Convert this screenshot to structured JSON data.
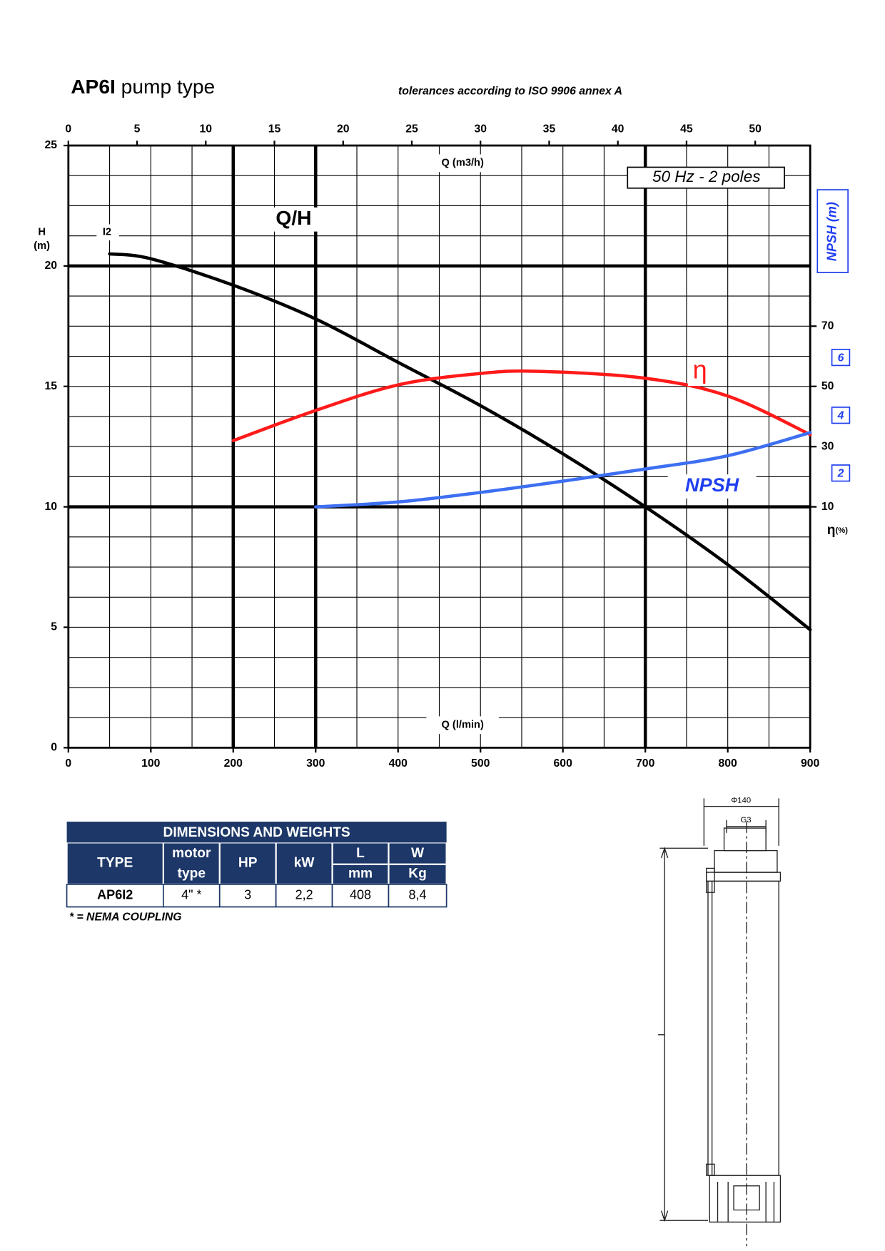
{
  "header": {
    "title_bold": "AP6I",
    "title_rest": "pump type",
    "note": "tolerances according to ISO 9906 annex A"
  },
  "chart_data": {
    "type": "line",
    "xlabel": "Q (l/min)",
    "x2label": "Q (m3/h)",
    "ylabel": "H",
    "yunit": "(m)",
    "y2label": "η",
    "y2unit": "(%)",
    "y3label": "NPSH (m)",
    "badge": "50 Hz - 2 poles",
    "annotations": [
      "I2"
    ],
    "xlim": [
      0,
      900
    ],
    "xticks": [
      0,
      100,
      200,
      300,
      400,
      500,
      600,
      700,
      800,
      900
    ],
    "x2lim": [
      0,
      54
    ],
    "x2ticks": [
      0,
      5,
      10,
      15,
      20,
      25,
      30,
      35,
      40,
      45,
      50
    ],
    "ylim": [
      0,
      25
    ],
    "yticks": [
      0,
      5,
      10,
      15,
      20,
      25
    ],
    "y2lim": [
      -70,
      130
    ],
    "y2ticks": [
      10,
      30,
      50,
      70
    ],
    "y3lim": [
      -7.5,
      13.33
    ],
    "y3ticks": [
      2,
      4,
      6
    ],
    "xgrid": [
      0,
      50,
      100,
      150,
      200,
      250,
      300,
      350,
      400,
      450,
      500,
      550,
      600,
      650,
      700,
      750,
      800,
      850,
      900
    ],
    "ygrid": [
      0,
      1.25,
      2.5,
      3.75,
      5,
      6.25,
      7.5,
      8.75,
      10,
      11.25,
      12.5,
      13.75,
      15,
      16.25,
      17.5,
      18.75,
      20,
      21.25,
      22.5,
      23.75,
      25
    ],
    "thick_x": [
      200,
      300,
      700
    ],
    "thick_y": [
      10,
      20
    ],
    "series": [
      {
        "name": "Q/H",
        "color": "#000000",
        "axis": "y",
        "x": [
          50,
          100,
          200,
          300,
          400,
          500,
          600,
          700,
          800,
          900
        ],
        "values": [
          20.5,
          20.3,
          19.2,
          17.8,
          16.0,
          14.2,
          12.2,
          10.0,
          7.6,
          4.9
        ]
      },
      {
        "name": "η",
        "color": "#ff1a1a",
        "axis": "y2",
        "x": [
          200,
          300,
          400,
          500,
          570,
          700,
          800,
          900
        ],
        "values": [
          32,
          42,
          50.5,
          54.3,
          55,
          52.7,
          46.8,
          34
        ]
      },
      {
        "name": "NPSH",
        "color": "#3d6ff2",
        "axis": "y3",
        "x": [
          300,
          400,
          500,
          600,
          700,
          800,
          900
        ],
        "values": [
          0.83,
          1.0,
          1.33,
          1.72,
          2.14,
          2.6,
          3.4
        ]
      }
    ]
  },
  "table": {
    "title": "DIMENSIONS AND WEIGHTS",
    "header": [
      [
        "TYPE"
      ],
      [
        "motor",
        "type"
      ],
      [
        "HP"
      ],
      [
        "kW"
      ],
      [
        "L",
        "mm"
      ],
      [
        "W",
        "Kg"
      ]
    ],
    "rows": [
      [
        "AP6I2",
        "4\" *",
        3,
        "2,2",
        408,
        "8,4"
      ]
    ],
    "footnote": "* = NEMA COUPLING"
  },
  "drawing": {
    "diameter": "Φ140",
    "thread": "G3"
  }
}
